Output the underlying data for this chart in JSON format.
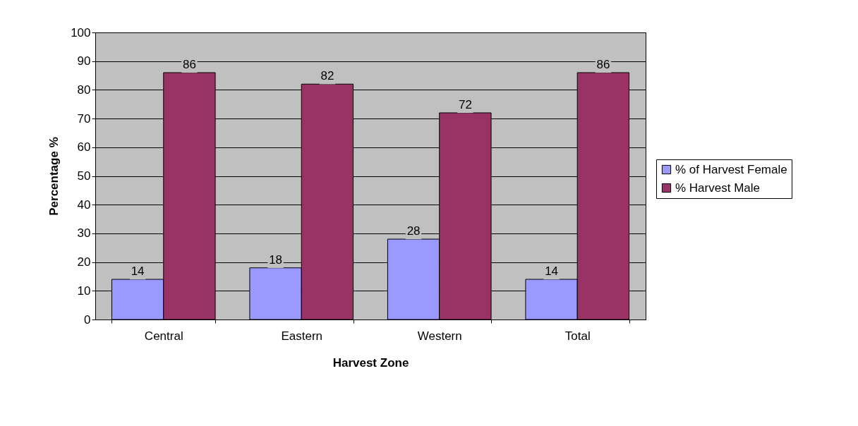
{
  "chart_data": {
    "type": "bar",
    "xlabel": "Harvest Zone",
    "ylabel": "Percentage %",
    "categories": [
      "Central",
      "Eastern",
      "Western",
      "Total"
    ],
    "series": [
      {
        "name": "% of Harvest Female",
        "color": "#9999ff",
        "values": [
          14,
          18,
          28,
          14
        ]
      },
      {
        "name": "% Harvest Male",
        "color": "#993366",
        "values": [
          86,
          82,
          72,
          86
        ]
      }
    ],
    "ylim": [
      0,
      100
    ],
    "yticks": [
      0,
      10,
      20,
      30,
      40,
      50,
      60,
      70,
      80,
      90,
      100
    ],
    "grid": "y",
    "legend": "right",
    "data_labels": true
  }
}
